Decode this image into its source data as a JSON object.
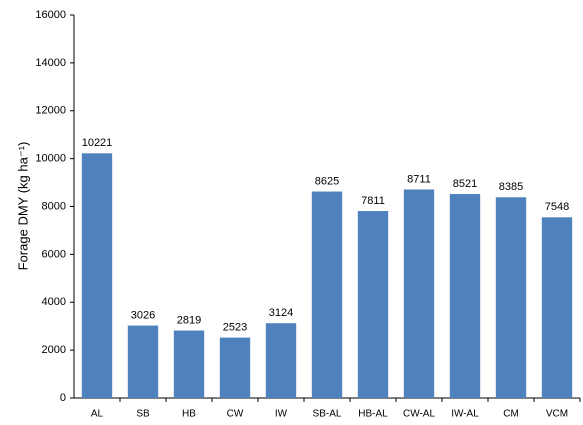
{
  "chart_data": {
    "type": "bar",
    "y_label": "Forage DMY (kg ha⁻¹)",
    "categories": [
      "AL",
      "SB",
      "HB",
      "CW",
      "IW",
      "SB-AL",
      "HB-AL",
      "CW-AL",
      "IW-AL",
      "CM",
      "VCM"
    ],
    "values": [
      10221,
      3026,
      2819,
      2523,
      3124,
      8625,
      7811,
      8711,
      8521,
      8385,
      7548
    ],
    "color": "#4f81bd",
    "ylim": [
      0,
      16000
    ],
    "yticks": [
      0,
      2000,
      4000,
      6000,
      8000,
      10000,
      12000,
      14000,
      16000
    ],
    "grid": false
  }
}
